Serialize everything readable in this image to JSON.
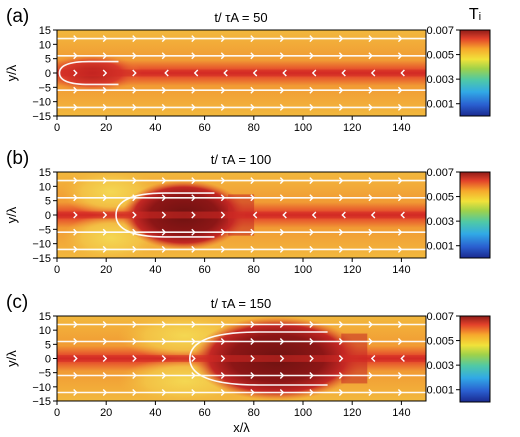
{
  "figure": {
    "colorbar_title": "Tᵢ",
    "xlabel": "x/λ",
    "ylabel": "y/λ"
  },
  "chart_data": [
    {
      "type": "heatmap",
      "panel_label": "(a)",
      "title": "t/ τA = 50",
      "xlabel": "",
      "ylabel": "y/λ",
      "xlim": [
        0,
        150
      ],
      "ylim": [
        -15,
        15
      ],
      "x_ticks": [
        "0",
        "20",
        "40",
        "60",
        "80",
        "100",
        "120",
        "140"
      ],
      "y_ticks": [
        "15",
        "10",
        "5",
        "0",
        "−5",
        "−10",
        "−15"
      ],
      "colorbar": {
        "label": "Tᵢ",
        "range": [
          0.0,
          0.007
        ],
        "ticks": [
          "0.007",
          "0.005",
          "0.003",
          "0.001"
        ]
      },
      "hot_region": {
        "x_range": [
          5,
          40
        ],
        "y_halfwidth": 5,
        "peak_T": 0.0068
      },
      "jet_core_T": 0.0062,
      "background_T": 0.0048
    },
    {
      "type": "heatmap",
      "panel_label": "(b)",
      "title": "t/ τA = 100",
      "xlabel": "",
      "ylabel": "y/λ",
      "xlim": [
        0,
        150
      ],
      "ylim": [
        -15,
        15
      ],
      "x_ticks": [
        "0",
        "20",
        "40",
        "60",
        "80",
        "100",
        "120",
        "140"
      ],
      "y_ticks": [
        "15",
        "10",
        "5",
        "0",
        "−5",
        "−10",
        "−15"
      ],
      "colorbar": {
        "label": "",
        "range": [
          0.0,
          0.007
        ],
        "ticks": [
          "0.007",
          "0.005",
          "0.003",
          "0.001"
        ]
      },
      "hot_region": {
        "x_range": [
          28,
          72
        ],
        "y_halfwidth": 9,
        "peak_T": 0.007
      },
      "jet_core_T": 0.0062,
      "background_T": 0.0048
    },
    {
      "type": "heatmap",
      "panel_label": "(c)",
      "title": "t/ τA = 150",
      "xlabel": "x/λ",
      "ylabel": "y/λ",
      "xlim": [
        0,
        150
      ],
      "ylim": [
        -15,
        15
      ],
      "x_ticks": [
        "0",
        "20",
        "40",
        "60",
        "80",
        "100",
        "120",
        "140"
      ],
      "y_ticks": [
        "15",
        "10",
        "5",
        "0",
        "−5",
        "−10",
        "−15"
      ],
      "colorbar": {
        "label": "",
        "range": [
          0.0,
          0.007
        ],
        "ticks": [
          "0.007",
          "0.005",
          "0.003",
          "0.001"
        ]
      },
      "hot_region": {
        "x_range": [
          58,
          118
        ],
        "y_halfwidth": 11,
        "peak_T": 0.007
      },
      "jet_core_T": 0.0062,
      "background_T": 0.0048
    }
  ]
}
